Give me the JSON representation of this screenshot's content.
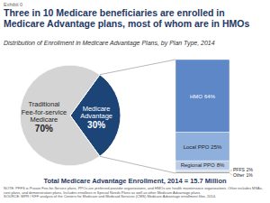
{
  "exhibit": "Exhibit 0",
  "chart_data": [
    {
      "type": "pie",
      "title": "Three in 10 Medicare beneficiaries are enrolled in Medicare Advantage plans, most of whom are in HMOs",
      "subtitle": "Distribution of Enrollment in Medicare Advantage Plans, by Plan Type, 2014",
      "categories": [
        "Traditional Fee-for-service Medicare",
        "Medicare Advantage"
      ],
      "values": [
        70,
        30
      ],
      "value_labels": [
        "70%",
        "30%"
      ],
      "colors": [
        "#d4d4d4",
        "#1d4477"
      ],
      "data_labels": true
    },
    {
      "type": "bar",
      "stacked": true,
      "title": "Total Medicare Advantage Enrollment, 2014 = 15.7 Million",
      "categories": [
        null
      ],
      "ylim": [
        0,
        100
      ],
      "tick_labels": false,
      "data_labels": true,
      "series": [
        {
          "name": "HMO",
          "color": "#5d87c6",
          "values": [
            64
          ],
          "value_labels": [
            "64%"
          ]
        },
        {
          "name": "Local PPO",
          "color": "#8fb0dc",
          "values": [
            25
          ],
          "value_labels": [
            "25%"
          ]
        },
        {
          "name": "Regional PPO",
          "color": "#b8cce8",
          "values": [
            8
          ],
          "value_labels": [
            "8%"
          ]
        },
        {
          "name": "PFFS",
          "color": "#d3deef",
          "values": [
            2
          ],
          "value_labels": [
            "2%"
          ]
        },
        {
          "name": "Other",
          "color": "#8a8a8a",
          "values": [
            1
          ],
          "value_labels": [
            "1%"
          ]
        }
      ]
    }
  ],
  "note": "NOTE: PFFS is Private Fee-for-Service plans, PPOs are preferred provider organizations, and HMOs are health maintenance organizations. Other includes MSAs, cost plans, and demonstration plans. Includes enrollees in Special Needs Plans as well as other Medicare Advantage plans.",
  "source": "SOURCE: MPR / KFF analysis of the Centers for Medicare and Medicaid Services (CMS) Medicare Advantage enrollment files, 2014."
}
